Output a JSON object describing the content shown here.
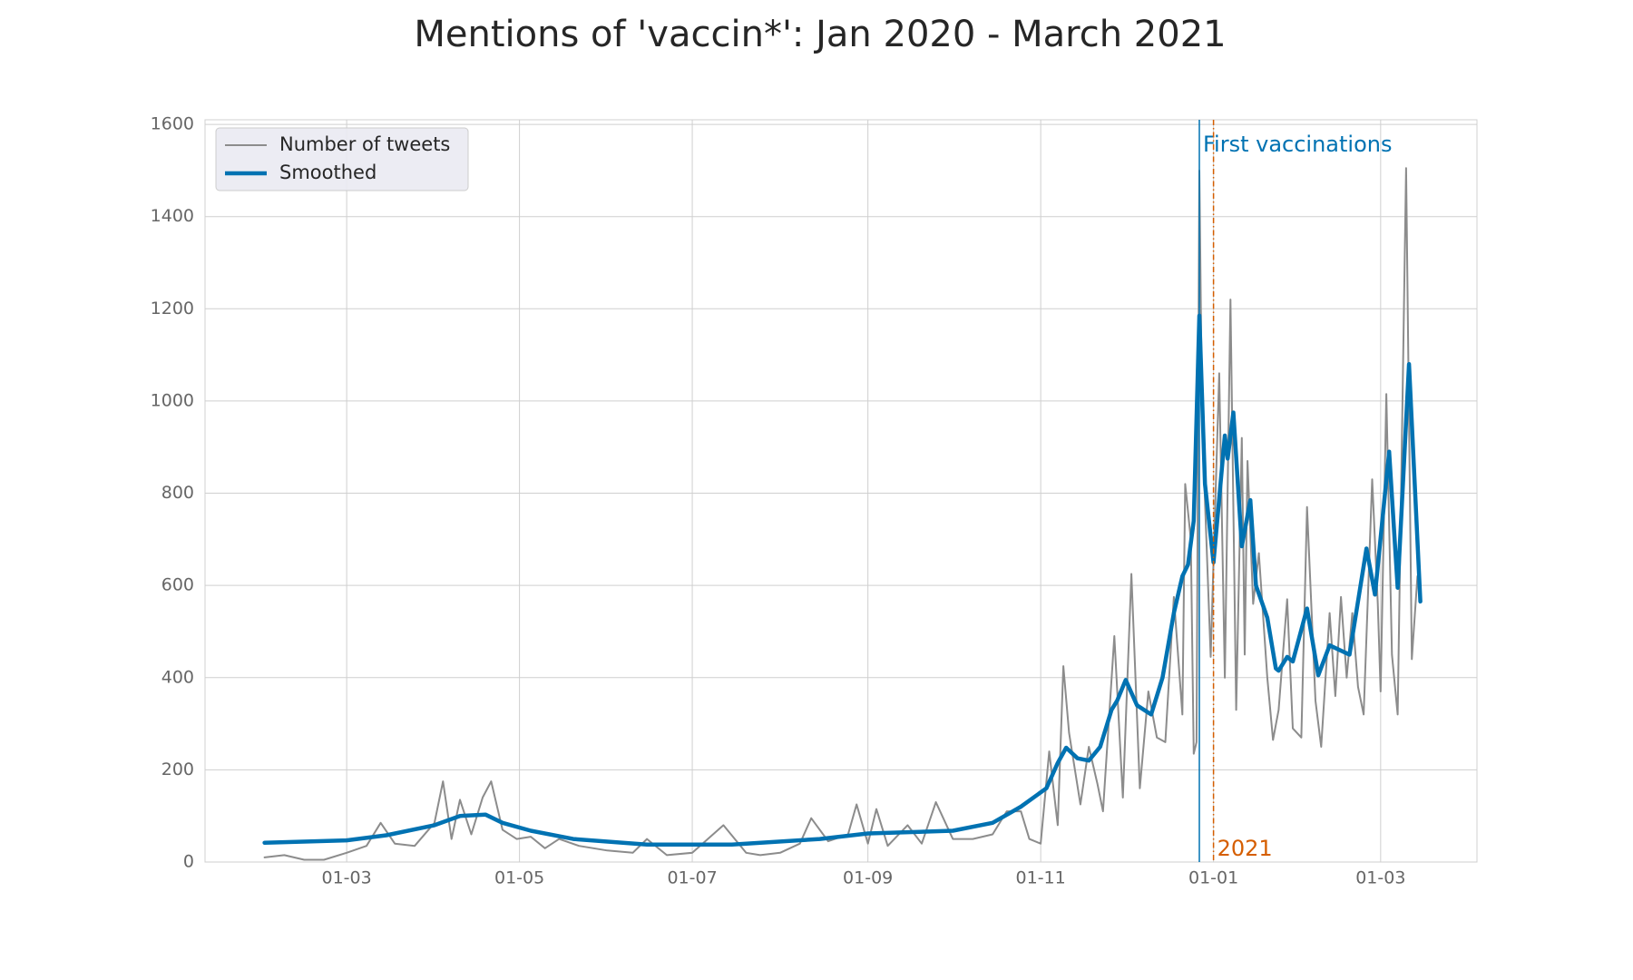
{
  "chart_data": {
    "type": "line",
    "title": "Mentions of 'vaccin*': Jan 2020 - March 2021",
    "xlim": [
      "2020-01-11",
      "2021-04-04"
    ],
    "ylim": [
      0,
      1610
    ],
    "yticks": [
      0,
      200,
      400,
      600,
      800,
      1000,
      1200,
      1400,
      1600
    ],
    "xticks": [
      {
        "value": "2020-03-01",
        "label": "01-03"
      },
      {
        "value": "2020-05-01",
        "label": "01-05"
      },
      {
        "value": "2020-07-01",
        "label": "01-07"
      },
      {
        "value": "2020-09-01",
        "label": "01-09"
      },
      {
        "value": "2020-11-01",
        "label": "01-11"
      },
      {
        "value": "2021-01-01",
        "label": "01-01"
      },
      {
        "value": "2021-03-01",
        "label": "01-03"
      }
    ],
    "grid": true,
    "legend": "upper left",
    "series": [
      {
        "name": "Number of tweets",
        "color": "#8c8c8c",
        "width": 2,
        "x": [
          "2020-02-01",
          "2020-02-08",
          "2020-02-15",
          "2020-02-22",
          "2020-03-01",
          "2020-03-08",
          "2020-03-13",
          "2020-03-18",
          "2020-03-25",
          "2020-04-01",
          "2020-04-04",
          "2020-04-07",
          "2020-04-10",
          "2020-04-14",
          "2020-04-18",
          "2020-04-21",
          "2020-04-25",
          "2020-04-30",
          "2020-05-05",
          "2020-05-10",
          "2020-05-15",
          "2020-05-22",
          "2020-06-01",
          "2020-06-10",
          "2020-06-15",
          "2020-06-22",
          "2020-07-01",
          "2020-07-12",
          "2020-07-20",
          "2020-07-25",
          "2020-08-01",
          "2020-08-08",
          "2020-08-12",
          "2020-08-18",
          "2020-08-25",
          "2020-08-28",
          "2020-09-01",
          "2020-09-04",
          "2020-09-08",
          "2020-09-15",
          "2020-09-20",
          "2020-09-25",
          "2020-10-01",
          "2020-10-08",
          "2020-10-15",
          "2020-10-20",
          "2020-10-25",
          "2020-10-28",
          "2020-11-01",
          "2020-11-04",
          "2020-11-07",
          "2020-11-09",
          "2020-11-11",
          "2020-11-15",
          "2020-11-18",
          "2020-11-21",
          "2020-11-23",
          "2020-11-27",
          "2020-11-30",
          "2020-12-03",
          "2020-12-06",
          "2020-12-09",
          "2020-12-12",
          "2020-12-15",
          "2020-12-18",
          "2020-12-21",
          "2020-12-22",
          "2020-12-24",
          "2020-12-25",
          "2020-12-26",
          "2020-12-27",
          "2020-12-28",
          "2020-12-31",
          "2021-01-01",
          "2021-01-03",
          "2021-01-05",
          "2021-01-07",
          "2021-01-09",
          "2021-01-11",
          "2021-01-12",
          "2021-01-13",
          "2021-01-15",
          "2021-01-17",
          "2021-01-20",
          "2021-01-22",
          "2021-01-24",
          "2021-01-27",
          "2021-01-29",
          "2021-02-01",
          "2021-02-03",
          "2021-02-06",
          "2021-02-08",
          "2021-02-11",
          "2021-02-13",
          "2021-02-15",
          "2021-02-17",
          "2021-02-19",
          "2021-02-21",
          "2021-02-23",
          "2021-02-26",
          "2021-02-28",
          "2021-03-01",
          "2021-03-03",
          "2021-03-05",
          "2021-03-07",
          "2021-03-10",
          "2021-03-12",
          "2021-03-14"
        ],
        "values": [
          10,
          15,
          5,
          5,
          20,
          35,
          85,
          40,
          35,
          85,
          175,
          50,
          135,
          60,
          140,
          175,
          70,
          50,
          55,
          30,
          50,
          35,
          25,
          20,
          50,
          15,
          20,
          80,
          20,
          15,
          20,
          40,
          95,
          45,
          60,
          125,
          40,
          115,
          35,
          80,
          40,
          130,
          50,
          50,
          60,
          110,
          110,
          50,
          40,
          240,
          80,
          425,
          280,
          125,
          250,
          170,
          110,
          490,
          140,
          625,
          160,
          370,
          270,
          260,
          575,
          320,
          820,
          700,
          235,
          260,
          1500,
          950,
          445,
          650,
          1060,
          400,
          1220,
          330,
          920,
          450,
          870,
          560,
          670,
          400,
          265,
          330,
          570,
          290,
          270,
          770,
          350,
          250,
          540,
          360,
          575,
          400,
          540,
          380,
          320,
          830,
          560,
          370,
          1015,
          450,
          320,
          1505,
          440,
          620
        ]
      },
      {
        "name": "Smoothed",
        "color": "#0072b2",
        "width": 4.5,
        "x": [
          "2020-02-01",
          "2020-03-01",
          "2020-03-15",
          "2020-04-01",
          "2020-04-10",
          "2020-04-19",
          "2020-04-25",
          "2020-05-05",
          "2020-05-20",
          "2020-06-15",
          "2020-07-15",
          "2020-08-15",
          "2020-09-01",
          "2020-10-01",
          "2020-10-15",
          "2020-10-25",
          "2020-11-03",
          "2020-11-07",
          "2020-11-10",
          "2020-11-14",
          "2020-11-18",
          "2020-11-22",
          "2020-11-26",
          "2020-11-28",
          "2020-12-01",
          "2020-12-05",
          "2020-12-10",
          "2020-12-14",
          "2020-12-18",
          "2020-12-21",
          "2020-12-23",
          "2020-12-25",
          "2020-12-27",
          "2020-12-29",
          "2021-01-01",
          "2021-01-05",
          "2021-01-06",
          "2021-01-08",
          "2021-01-11",
          "2021-01-14",
          "2021-01-16",
          "2021-01-20",
          "2021-01-23",
          "2021-01-24",
          "2021-01-27",
          "2021-01-29",
          "2021-02-03",
          "2021-02-07",
          "2021-02-11",
          "2021-02-18",
          "2021-02-24",
          "2021-02-27",
          "2021-03-04",
          "2021-03-07",
          "2021-03-11",
          "2021-03-15"
        ],
        "values": [
          42,
          47,
          58,
          80,
          100,
          103,
          85,
          68,
          50,
          38,
          38,
          50,
          62,
          68,
          85,
          120,
          160,
          215,
          248,
          225,
          220,
          250,
          330,
          350,
          395,
          340,
          320,
          400,
          540,
          620,
          645,
          740,
          1185,
          820,
          650,
          925,
          875,
          975,
          685,
          785,
          600,
          530,
          420,
          415,
          445,
          435,
          550,
          405,
          470,
          450,
          680,
          580,
          890,
          595,
          1080,
          565
        ]
      }
    ],
    "annotations": [
      {
        "text": "First vaccinations",
        "x": "2020-12-27",
        "color": "#0072b2",
        "style": "solid",
        "position": "top"
      },
      {
        "text": "2021",
        "x": "2021-01-01",
        "color": "#d55e00",
        "style": "dashdot",
        "position": "bottom"
      }
    ]
  }
}
